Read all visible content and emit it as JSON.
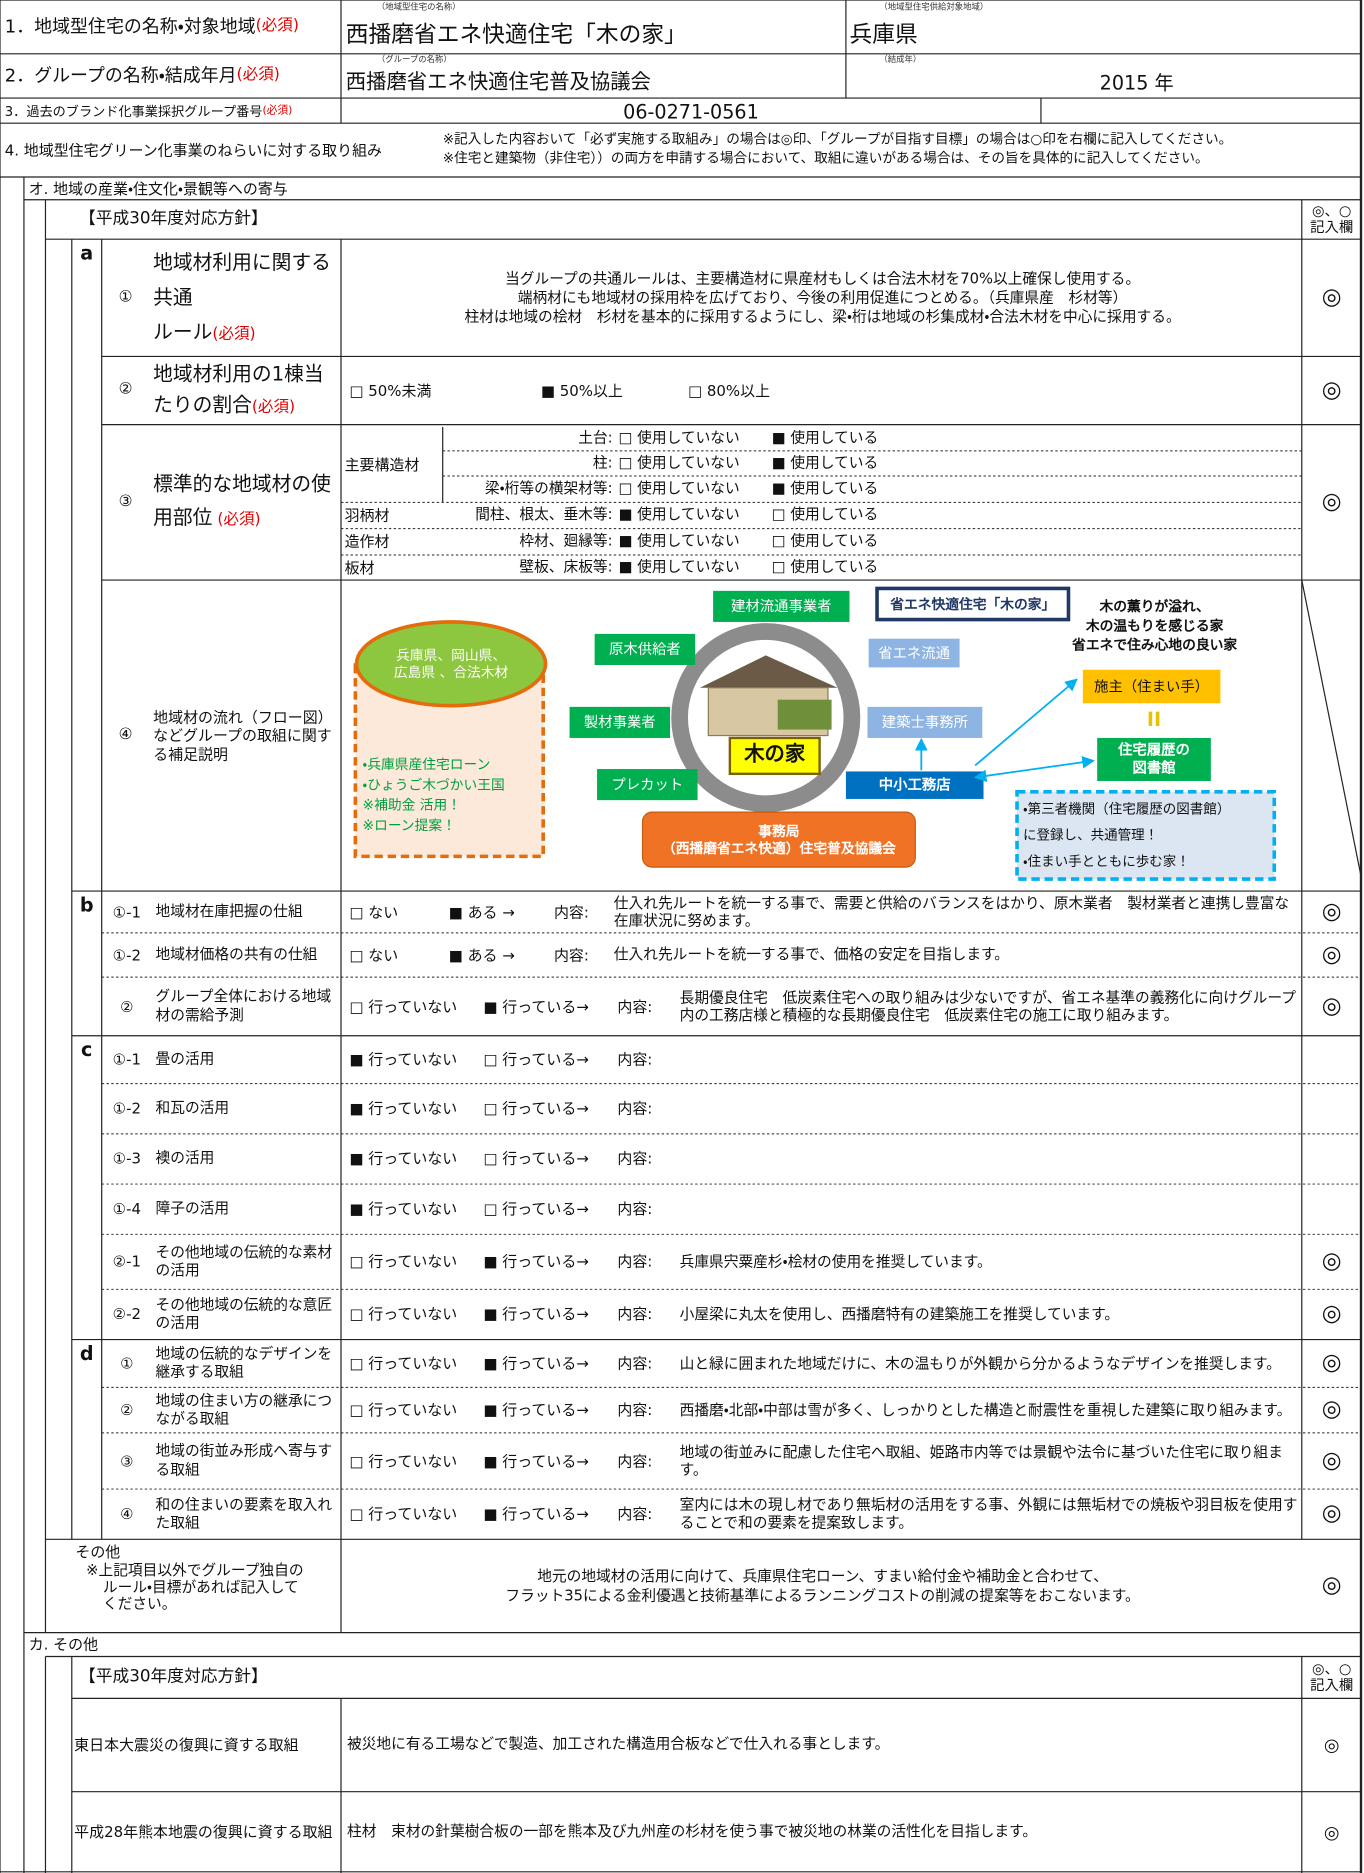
{
  "header": {
    "row1": {
      "label": "1．地域型住宅の名称・対象地域",
      "required": "(必須)",
      "name_caption": "（地域型住宅の名称）",
      "name": "西播磨省エネ快適住宅「木の家」",
      "area_caption": "（地域型住宅供給対象地域）",
      "area": "兵庫県"
    },
    "row2": {
      "label": "2．グループの名称・結成年月",
      "required": "(必須)",
      "name_caption": "（グループの名称）",
      "name": "西播磨省エネ快適住宅普及協議会",
      "year_caption": "（結成年）",
      "year": "2015 年"
    },
    "row3": {
      "label": "3．過去のブランド化事業採択グループ番号",
      "required": "(必須)",
      "number": "06-0271-0561"
    }
  },
  "section4": {
    "title": "4. 地域型住宅グリーン化事業のねらいに対する取り組み",
    "notes": [
      "※記入した内容おいて「必ず実施する取組み」の場合は◎印、「グループが目指す目標」の場合は○印を右欄に記入してください。",
      "※住宅と建築物（非住宅））の両方を申請する場合において、取組に違いがある場合は、その旨を具体的に記入してください。"
    ]
  },
  "section_o": {
    "title": "オ. 地域の産業・住文化・景観等への寄与",
    "policy": "【平成30年度対応方針】",
    "mark_header": [
      "◎、○",
      "記入欄"
    ],
    "a": {
      "letter": "a",
      "rule": {
        "number": "①",
        "label": [
          "地域材利用に関する",
          "共通",
          "ルール"
        ],
        "required": "(必須)",
        "content": [
          "当グループの共通ルールは、主要構造材に県産材もしくは合法木材を70%以上確保し使用する。",
          "端柄材にも地域材の採用枠を広げており、今後の利用促進につとめる。（兵庫県産　杉材等）",
          "柱材は地域の桧材　杉材を基本的に採用するようにし、梁・桁は地域の杉集成材・合法木材を中心に採用する。"
        ],
        "mark": "◎"
      },
      "ratio": {
        "number": "②",
        "label": [
          "地域材利用の1棟当",
          "たりの割合"
        ],
        "required": "(必須)",
        "options": [
          "□ 50%未満",
          "■ 50%以上",
          "□ 80%以上"
        ],
        "mark": "◎"
      },
      "parts": {
        "number": "③",
        "label": [
          "標準的な地域材の使",
          "用部位"
        ],
        "required": " (必須)",
        "groups": [
          "主要構造材",
          "羽柄材",
          "造作材",
          "板材"
        ],
        "rows": [
          {
            "part": "土台:",
            "not_used": "□ 使用していない",
            "used": "■ 使用している"
          },
          {
            "part": "柱:",
            "not_used": "□ 使用していない",
            "used": "■ 使用している"
          },
          {
            "part": "梁・桁等の横架材等:",
            "not_used": "□ 使用していない",
            "used": "■ 使用している"
          },
          {
            "part": "間柱、根太、垂木等:",
            "not_used": "■ 使用していない",
            "used": "□ 使用している"
          },
          {
            "part": "枠材、廻縁等:",
            "not_used": "■ 使用していない",
            "used": "□ 使用している"
          },
          {
            "part": "壁板、床板等:",
            "not_used": "■ 使用していない",
            "used": "□ 使用している"
          }
        ],
        "mark": "◎"
      },
      "flow": {
        "number": "④",
        "label": "地域材の流れ（フロー図）などグループの取組に関する補足説明",
        "diagram": {
          "source": [
            "兵庫県、岡山県、",
            "広島県 、合法木材"
          ],
          "support": [
            "・兵庫県産住宅ローン",
            "・ひょうご木づかい王国",
            "※補助金 活用！",
            "※ローン提案！"
          ],
          "center": "木の家",
          "suppliers": [
            "建材流通事業者",
            "原木供給者",
            "製材事業者",
            "プレカット"
          ],
          "partners": [
            "省エネ流通",
            "建築士事務所",
            "中小工務店"
          ],
          "brand": "省エネ快適住宅「木の家」",
          "office": [
            "事務局",
            "（西播磨省エネ快適）住宅普及協議会"
          ],
          "concept": [
            "木の薫りが溢れ、",
            "木の温もりを感じる家",
            "省エネで住み心地の良い家"
          ],
          "owner": "施主（住まい手）",
          "library": [
            "住宅履歴の",
            "図書館"
          ],
          "registry": [
            "・第三者機関（住宅履歴の図書館）",
            "に登録し、共通管理！",
            "・住まい手とともに歩む家！"
          ]
        }
      }
    },
    "b": {
      "letter": "b",
      "rows": [
        {
          "number": "①-1",
          "label": "地域材在庫把握の仕組",
          "options": [
            "□ ない",
            "■ ある →"
          ],
          "content_label": "内容:",
          "content": "仕入れ先ルートを統一する事で、需要と供給のバランスをはかり、原木業者　製材業者と連携し豊富な在庫状況に努めます。",
          "mark": "◎"
        },
        {
          "number": "①-2",
          "label": "地域材価格の共有の仕組",
          "options": [
            "□ ない",
            "■ ある →"
          ],
          "content_label": "内容:",
          "content": "仕入れ先ルートを統一する事で、価格の安定を目指します。",
          "mark": "◎"
        },
        {
          "number": "②",
          "label": "グループ全体における地域材の需給予測",
          "options": [
            "□ 行っていない",
            "■ 行っている→"
          ],
          "content_label": "内容:",
          "content": "長期優良住宅　低炭素住宅への取り組みは少ないですが、省エネ基準の義務化に向けグループ内の工務店様と積極的な長期優良住宅　低炭素住宅の施工に取り組みます。",
          "mark": "◎"
        }
      ]
    },
    "c": {
      "letter": "c",
      "rows": [
        {
          "number": "①-1",
          "label": "畳の活用",
          "options": [
            "■ 行っていない",
            "□ 行っている→"
          ],
          "content_label": "内容:"
        },
        {
          "number": "①-2",
          "label": "和瓦の活用",
          "options": [
            "■ 行っていない",
            "□ 行っている→"
          ],
          "content_label": "内容:"
        },
        {
          "number": "①-3",
          "label": "襖の活用",
          "options": [
            "■ 行っていない",
            "□ 行っている→"
          ],
          "content_label": "内容:"
        },
        {
          "number": "①-4",
          "label": "障子の活用",
          "options": [
            "■ 行っていない",
            "□ 行っている→"
          ],
          "content_label": "内容:"
        },
        {
          "number": "②-1",
          "label": "その他地域の伝統的な素材の活用",
          "options": [
            "□ 行っていない",
            "■ 行っている→"
          ],
          "content_label": "内容:",
          "content": "兵庫県宍粟産杉・桧材の使用を推奨しています。",
          "mark": "◎"
        },
        {
          "number": "②-2",
          "label": "その他地域の伝統的な意匠の活用",
          "options": [
            "□ 行っていない",
            "■ 行っている→"
          ],
          "content_label": "内容:",
          "content": "小屋梁に丸太を使用し、西播磨特有の建築施工を推奨しています。",
          "mark": "◎"
        }
      ]
    },
    "d": {
      "letter": "d",
      "rows": [
        {
          "number": "①",
          "label": "地域の伝統的なデザインを継承する取組",
          "options": [
            "□ 行っていない",
            "■ 行っている→"
          ],
          "content_label": "内容:",
          "content": "山と緑に囲まれた地域だけに、木の温もりが外観から分かるようなデザインを推奨します。",
          "mark": "◎"
        },
        {
          "number": "②",
          "label": "地域の住まい方の継承につながる取組",
          "options": [
            "□ 行っていない",
            "■ 行っている→"
          ],
          "content_label": "内容:",
          "content": "西播磨・北部・中部は雪が多く、しっかりとした構造と耐震性を重視した建築に取り組みます。",
          "mark": "◎"
        },
        {
          "number": "③",
          "label": "地域の街並み形成へ寄与する取組",
          "options": [
            "□ 行っていない",
            "■ 行っている→"
          ],
          "content_label": "内容:",
          "content": "地域の街並みに配慮した住宅へ取組、姫路市内等では景観や法令に基づいた住宅に取り組ます。",
          "mark": "◎"
        },
        {
          "number": "④",
          "label": "和の住まいの要素を取入れた取組",
          "options": [
            "□ 行っていない",
            "■ 行っている→"
          ],
          "content_label": "内容:",
          "content": "室内には木の現し材であり無垢材の活用をする事、外観には無垢材での焼板や羽目板を使用することで和の要素を提案致します。",
          "mark": "◎"
        }
      ]
    },
    "other": {
      "title": "その他",
      "note": "※上記項目以外でグループ独自のルール・目標があれば記入してください。",
      "content": [
        "地元の地域材の活用に向けて、兵庫県住宅ローン、すまい給付金や補助金と合わせて、",
        "フラット35による金利優遇と技術基準によるランニングコストの削減の提案等をおこないます。"
      ],
      "mark": "◎"
    }
  },
  "section_ka": {
    "title": "カ. その他",
    "policy": "【平成30年度対応方針】",
    "mark_header": [
      "◎、○",
      "記入欄"
    ],
    "rows": [
      {
        "label": "東日本大震災の復興に資する取組",
        "content": "被災地に有る工場などで製造、加工された構造用合板などで仕入れる事とします。",
        "mark": "◎"
      },
      {
        "label": "平成28年熊本地震の復興に資する取組",
        "content": "柱材　束材の針葉樹合板の一部を熊本及び九州産の杉材を使う事で被災地の林業の活性化を目指します。",
        "mark": "◎"
      }
    ]
  }
}
